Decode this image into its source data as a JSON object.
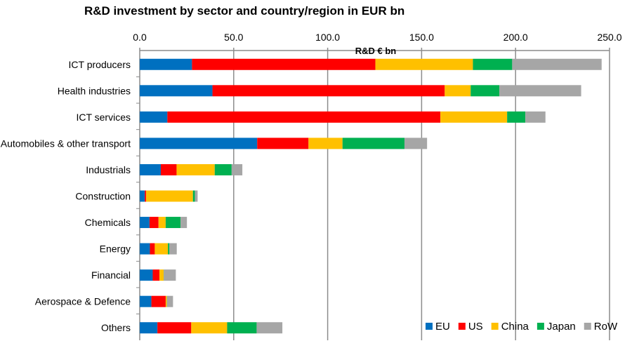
{
  "chart_data": {
    "type": "bar",
    "orientation": "horizontal",
    "stacked": true,
    "title": "R&D investment by sector and country/region in EUR bn",
    "xlabel": "R&D € bn",
    "ylabel": "",
    "xlim": [
      0,
      250
    ],
    "xticks": [
      "0.0",
      "50.0",
      "100.0",
      "150.0",
      "200.0",
      "250.0"
    ],
    "x_axis_position": "top",
    "grid": true,
    "legend_position": "bottom-right",
    "categories": [
      "ICT producers",
      "Health industries",
      "ICT services",
      "Automobiles & other transport",
      "Industrials",
      "Construction",
      "Chemicals",
      "Energy",
      "Financial",
      "Aerospace & Defence",
      "Others"
    ],
    "series": [
      {
        "name": "EU",
        "color": "#0070C0",
        "values": [
          27.8,
          38.7,
          14.7,
          62.5,
          11.2,
          2.7,
          5.2,
          5.4,
          6.9,
          6.2,
          9.4
        ]
      },
      {
        "name": "US",
        "color": "#FF0000",
        "values": [
          97.6,
          123.6,
          145.3,
          27.3,
          8.4,
          0.7,
          4.8,
          2.6,
          3.6,
          7.6,
          18.0
        ]
      },
      {
        "name": "China",
        "color": "#FFC000",
        "values": [
          51.9,
          13.8,
          35.5,
          18.1,
          20.3,
          24.9,
          3.8,
          7.0,
          2.2,
          0.6,
          19.1
        ]
      },
      {
        "name": "Japan",
        "color": "#00B050",
        "values": [
          20.9,
          15.3,
          9.7,
          33.0,
          9.0,
          1.1,
          7.9,
          0.8,
          0.1,
          0.1,
          15.7
        ]
      },
      {
        "name": "RoW",
        "color": "#A6A6A6",
        "values": [
          47.6,
          43.5,
          10.7,
          12.0,
          5.7,
          1.4,
          3.4,
          3.9,
          6.4,
          3.2,
          13.7
        ]
      }
    ]
  }
}
